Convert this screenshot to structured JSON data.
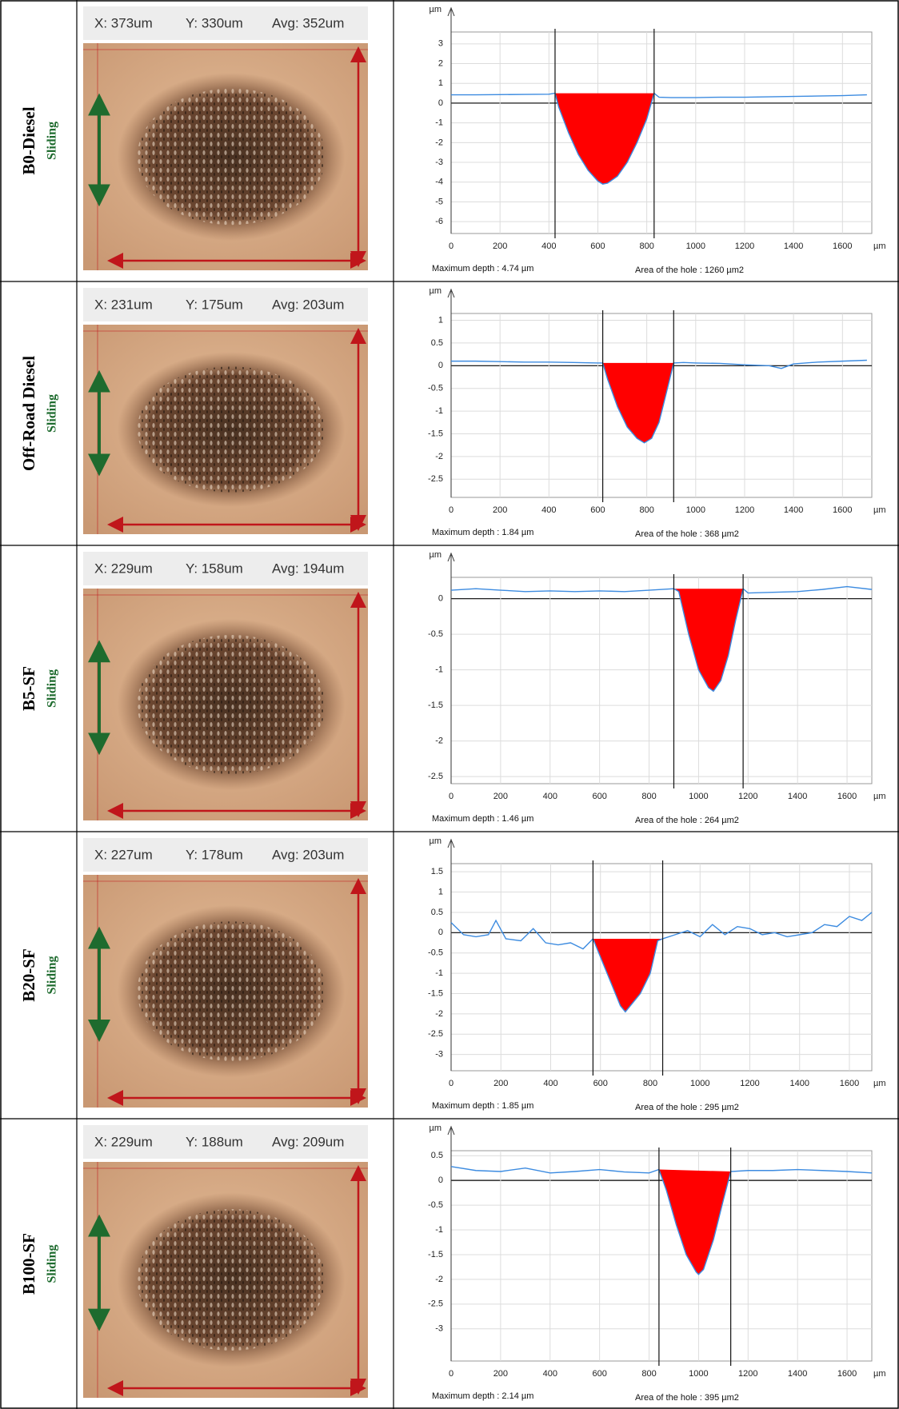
{
  "rows": [
    {
      "label": "B0-Diesel",
      "mode": "Sliding",
      "measure": [
        "X: 373um",
        "Y: 330um",
        "Avg: 352um"
      ]
    },
    {
      "label": "Off-Road Diesel",
      "mode": "Sliding",
      "measure": [
        "X: 231um",
        "Y: 175um",
        "Avg: 203um"
      ]
    },
    {
      "label": "B5-SF",
      "mode": "Sliding",
      "measure": [
        "X: 229um",
        "Y: 158um",
        "Avg: 194um"
      ]
    },
    {
      "label": "B20-SF",
      "mode": "Sliding",
      "measure": [
        "X: 227um",
        "Y: 178um",
        "Avg: 203um"
      ]
    },
    {
      "label": "B100-SF",
      "mode": "Sliding",
      "measure": [
        "X: 229um",
        "Y: 188um",
        "Avg: 209um"
      ]
    }
  ],
  "chart_data": [
    {
      "type": "line",
      "x_unit": "µm",
      "y_unit": "µm",
      "color": "#3c8be0",
      "fill_color": "#ff0000",
      "grid": true,
      "xlim": [
        0,
        1720
      ],
      "ylim": [
        -6.6,
        3.6
      ],
      "xticks": [
        0,
        200,
        400,
        600,
        800,
        1000,
        1200,
        1400,
        1600
      ],
      "yticks": [
        3,
        2,
        1,
        0,
        -1,
        -2,
        -3,
        -4,
        -5,
        -6
      ],
      "cursors": [
        425,
        830
      ],
      "x": [
        0,
        100,
        200,
        300,
        400,
        425,
        440,
        480,
        520,
        560,
        600,
        620,
        640,
        680,
        720,
        760,
        800,
        830,
        850,
        900,
        1000,
        1100,
        1200,
        1300,
        1400,
        1500,
        1600,
        1700
      ],
      "values": [
        0.42,
        0.42,
        0.43,
        0.44,
        0.45,
        0.5,
        -0.2,
        -1.5,
        -2.6,
        -3.4,
        -3.95,
        -4.1,
        -4.05,
        -3.7,
        -3.0,
        -2.0,
        -0.8,
        0.5,
        0.3,
        0.28,
        0.28,
        0.3,
        0.3,
        0.32,
        0.34,
        0.36,
        0.38,
        0.42
      ],
      "notes": [
        "Maximum depth :  4.74 µm",
        "Area of the hole :  1260 µm2"
      ]
    },
    {
      "type": "line",
      "x_unit": "µm",
      "y_unit": "µm",
      "color": "#3c8be0",
      "fill_color": "#ff0000",
      "grid": true,
      "xlim": [
        0,
        1720
      ],
      "ylim": [
        -2.9,
        1.15
      ],
      "xticks": [
        0,
        200,
        400,
        600,
        800,
        1000,
        1200,
        1400,
        1600
      ],
      "yticks": [
        1,
        0.5,
        0,
        -0.5,
        -1,
        -1.5,
        -2,
        -2.5
      ],
      "cursors": [
        620,
        910
      ],
      "x": [
        0,
        100,
        200,
        300,
        400,
        500,
        600,
        620,
        640,
        680,
        720,
        760,
        790,
        820,
        850,
        880,
        910,
        950,
        1000,
        1100,
        1200,
        1300,
        1350,
        1400,
        1500,
        1600,
        1700
      ],
      "values": [
        0.1,
        0.1,
        0.09,
        0.08,
        0.08,
        0.07,
        0.06,
        0.06,
        -0.3,
        -0.9,
        -1.35,
        -1.6,
        -1.7,
        -1.6,
        -1.25,
        -0.6,
        0.06,
        0.07,
        0.06,
        0.05,
        0.02,
        0.0,
        -0.06,
        0.04,
        0.08,
        0.1,
        0.12
      ],
      "notes": [
        "Maximum depth :  1.84 µm",
        "Area of the hole :  368 µm2"
      ]
    },
    {
      "type": "line",
      "x_unit": "µm",
      "y_unit": "µm",
      "color": "#3c8be0",
      "fill_color": "#ff0000",
      "grid": true,
      "xlim": [
        0,
        1700
      ],
      "ylim": [
        -2.6,
        0.3
      ],
      "xticks": [
        0,
        200,
        400,
        600,
        800,
        1000,
        1200,
        1400,
        1600
      ],
      "yticks": [
        0,
        -0.5,
        -1,
        -1.5,
        -2,
        -2.5
      ],
      "cursors": [
        900,
        1180
      ],
      "x": [
        0,
        100,
        200,
        300,
        400,
        500,
        600,
        700,
        800,
        900,
        920,
        960,
        1000,
        1040,
        1060,
        1090,
        1120,
        1150,
        1180,
        1200,
        1300,
        1400,
        1500,
        1600,
        1700
      ],
      "values": [
        0.12,
        0.14,
        0.12,
        0.1,
        0.11,
        0.1,
        0.11,
        0.1,
        0.12,
        0.14,
        0.1,
        -0.5,
        -1.0,
        -1.25,
        -1.3,
        -1.15,
        -0.8,
        -0.3,
        0.14,
        0.08,
        0.09,
        0.1,
        0.13,
        0.17,
        0.13
      ],
      "notes": [
        "Maximum depth :  1.46 µm",
        "Area of the hole :  264 µm2"
      ]
    },
    {
      "type": "line",
      "x_unit": "µm",
      "y_unit": "µm",
      "color": "#3c8be0",
      "fill_color": "#ff0000",
      "grid": true,
      "xlim": [
        0,
        1690
      ],
      "ylim": [
        -3.4,
        1.7
      ],
      "xticks": [
        0,
        200,
        400,
        600,
        800,
        1000,
        1200,
        1400,
        1600
      ],
      "yticks": [
        1.5,
        1,
        0.5,
        0,
        -0.5,
        -1,
        -1.5,
        -2,
        -2.5,
        -3
      ],
      "cursors": [
        570,
        850
      ],
      "x": [
        0,
        50,
        100,
        150,
        180,
        220,
        280,
        330,
        380,
        430,
        480,
        530,
        570,
        600,
        640,
        680,
        700,
        720,
        760,
        800,
        830,
        850,
        900,
        950,
        1000,
        1050,
        1100,
        1150,
        1200,
        1250,
        1300,
        1350,
        1400,
        1450,
        1500,
        1550,
        1600,
        1650,
        1690
      ],
      "values": [
        0.25,
        -0.05,
        -0.1,
        -0.05,
        0.3,
        -0.15,
        -0.2,
        0.1,
        -0.25,
        -0.3,
        -0.25,
        -0.4,
        -0.15,
        -0.6,
        -1.2,
        -1.8,
        -1.95,
        -1.8,
        -1.5,
        -1.0,
        -0.2,
        -0.15,
        -0.05,
        0.05,
        -0.1,
        0.2,
        -0.05,
        0.15,
        0.1,
        -0.05,
        0.0,
        -0.1,
        -0.05,
        0.0,
        0.2,
        0.15,
        0.4,
        0.3,
        0.5
      ],
      "notes": [
        "Maximum depth :  1.85 µm",
        "Area of the hole :  295 µm2"
      ]
    },
    {
      "type": "line",
      "x_unit": "µm",
      "y_unit": "µm",
      "color": "#3c8be0",
      "fill_color": "#ff0000",
      "grid": true,
      "xlim": [
        0,
        1700
      ],
      "ylim": [
        -3.65,
        0.6
      ],
      "xticks": [
        0,
        200,
        400,
        600,
        800,
        1000,
        1200,
        1400,
        1600
      ],
      "yticks": [
        0.5,
        0,
        -0.5,
        -1,
        -1.5,
        -2,
        -2.5,
        -3
      ],
      "cursors": [
        840,
        1130
      ],
      "x": [
        0,
        100,
        200,
        300,
        400,
        500,
        600,
        700,
        800,
        840,
        870,
        910,
        950,
        990,
        1000,
        1020,
        1060,
        1100,
        1130,
        1200,
        1300,
        1400,
        1500,
        1600,
        1700
      ],
      "values": [
        0.28,
        0.2,
        0.18,
        0.25,
        0.15,
        0.18,
        0.22,
        0.17,
        0.15,
        0.22,
        -0.2,
        -0.9,
        -1.5,
        -1.85,
        -1.9,
        -1.8,
        -1.2,
        -0.4,
        0.18,
        0.2,
        0.2,
        0.22,
        0.2,
        0.18,
        0.15
      ],
      "notes": [
        "Maximum depth :  2.14 µm",
        "Area of the hole :  395 µm2"
      ]
    }
  ]
}
